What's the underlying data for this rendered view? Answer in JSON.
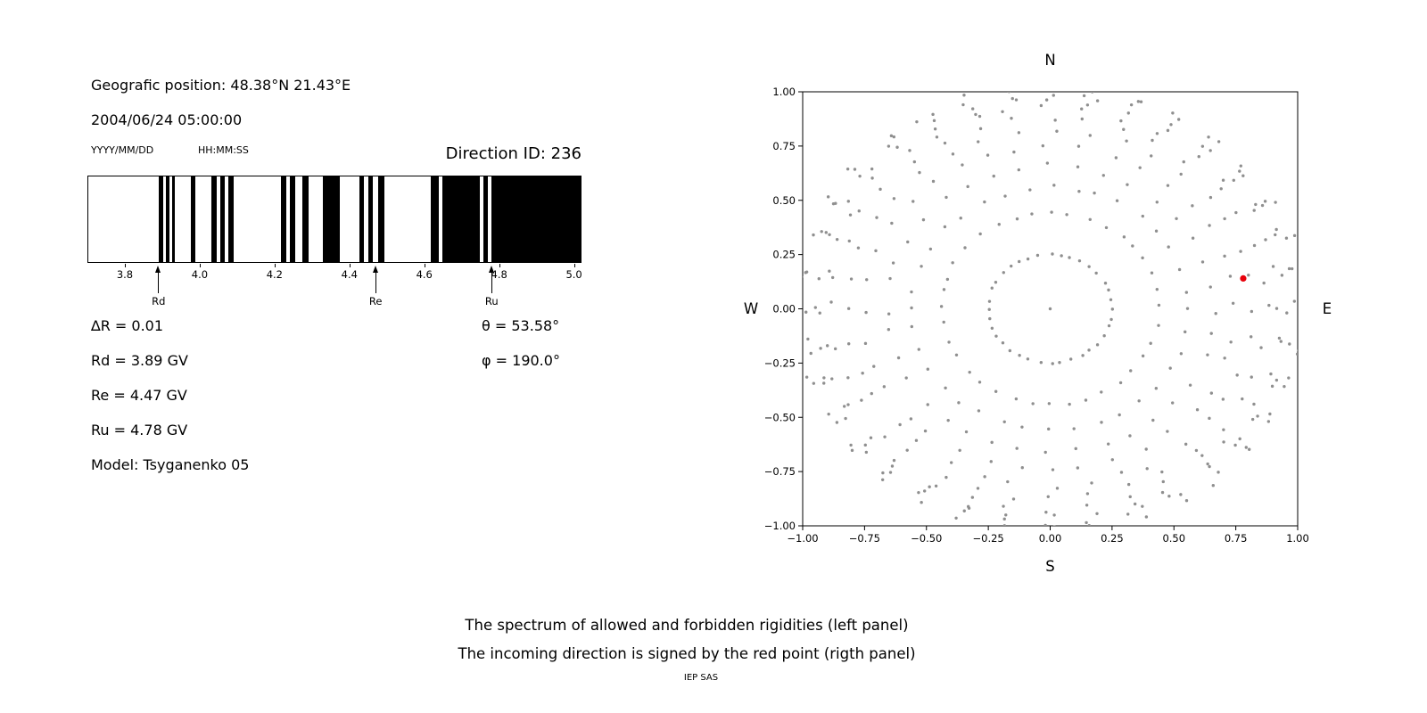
{
  "header": {
    "position": "Geografic position: 48.38°N 21.43°E",
    "datetime": "2004/06/24 05:00:00",
    "date_format": "YYYY/MM/DD",
    "time_format": "HH:MM:SS",
    "direction_id": "Direction ID: 236"
  },
  "params": {
    "delta_r": "∆R = 0.01",
    "theta": "θ = 53.58°",
    "rd": "Rd = 3.89 GV",
    "phi": "φ = 190.0°",
    "re": "Re = 4.47 GV",
    "ru": "Ru = 4.78 GV",
    "model": "Model: Tsyganenko 05"
  },
  "caption": {
    "line1": "The spectrum of allowed and forbidden rigidities (left panel)",
    "line2": "The incoming direction is signed by the red point (rigth panel)",
    "credit": "IEP SAS"
  },
  "chart_data": [
    {
      "type": "bar",
      "xlim": [
        3.7,
        5.02
      ],
      "xticks": [
        3.8,
        4.0,
        4.2,
        4.4,
        4.6,
        4.8,
        5.0
      ],
      "xtick_labels": [
        "3.8",
        "4.0",
        "4.2",
        "4.4",
        "4.6",
        "4.8",
        "5.0"
      ],
      "allowed_bands": [
        [
          3.89,
          3.9
        ],
        [
          3.907,
          3.917
        ],
        [
          3.924,
          3.933
        ],
        [
          3.974,
          3.988
        ],
        [
          4.031,
          4.045
        ],
        [
          4.055,
          4.067
        ],
        [
          4.076,
          4.09
        ],
        [
          4.217,
          4.231
        ],
        [
          4.24,
          4.255
        ],
        [
          4.274,
          4.29
        ],
        [
          4.329,
          4.374
        ],
        [
          4.426,
          4.44
        ],
        [
          4.45,
          4.462
        ],
        [
          4.476,
          4.493
        ],
        [
          4.619,
          4.64
        ],
        [
          4.65,
          4.75
        ],
        [
          4.76,
          4.771
        ],
        [
          4.781,
          5.02
        ]
      ],
      "markers": [
        {
          "label": "Rd",
          "x": 3.89
        },
        {
          "label": "Re",
          "x": 4.47
        },
        {
          "label": "Ru",
          "x": 4.78
        }
      ]
    },
    {
      "type": "scatter",
      "xlim": [
        -1.0,
        1.0
      ],
      "ylim": [
        -1.0,
        1.0
      ],
      "xticks": [
        -1.0,
        -0.75,
        -0.5,
        -0.25,
        0.0,
        0.25,
        0.5,
        0.75,
        1.0
      ],
      "xtick_labels": [
        "−1.00",
        "−0.75",
        "−0.50",
        "−0.25",
        "0.00",
        "0.25",
        "0.50",
        "0.75",
        "1.00"
      ],
      "ytick_labels": [
        "−1.00",
        "−0.75",
        "−0.50",
        "−0.25",
        "0.00",
        "0.25",
        "0.50",
        "0.75",
        "1.00"
      ],
      "compass": {
        "top": "N",
        "bottom": "S",
        "left": "W",
        "right": "E"
      },
      "dot_color": "#8f8f8f",
      "directions_grid": {
        "azimuth_start_deg": 0,
        "azimuth_step_deg": 10,
        "azimuth_count": 36,
        "radii": [
          0.25,
          0.44,
          0.56,
          0.66,
          0.75,
          0.82,
          0.88,
          0.925,
          0.96,
          0.985,
          1.005,
          1.03
        ]
      },
      "center_dot": {
        "x": 0.0,
        "y": 0.0
      },
      "red_point": {
        "x": 0.78,
        "y": 0.14,
        "color": "#e8000b"
      }
    }
  ]
}
